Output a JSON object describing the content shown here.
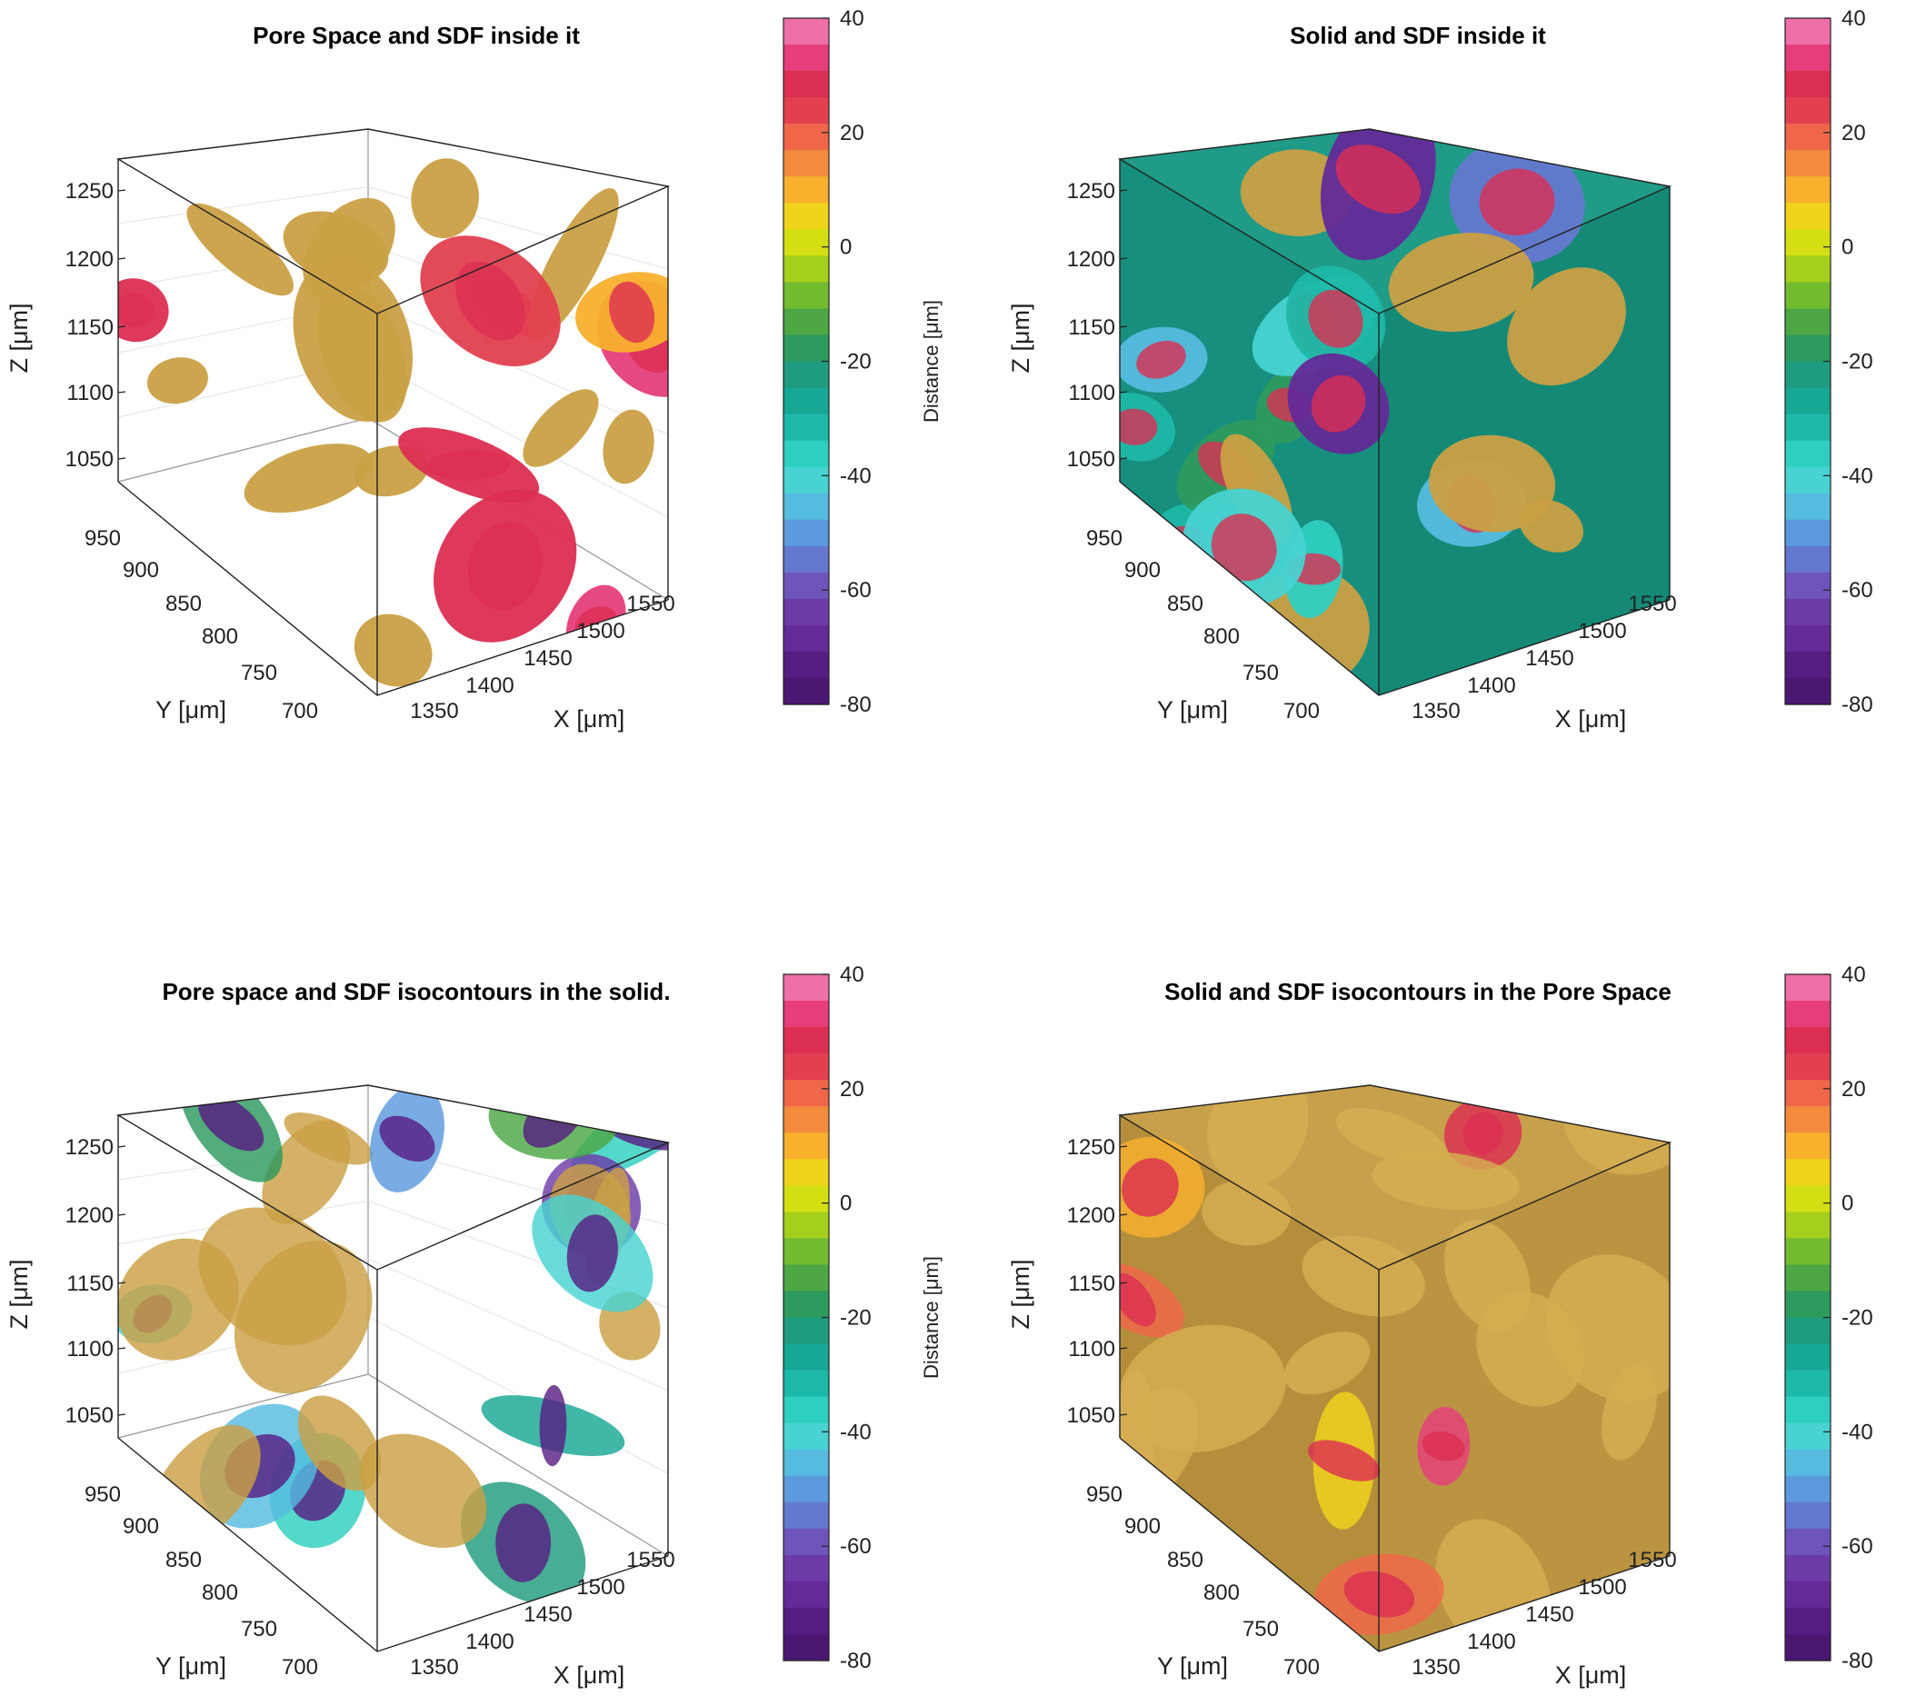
{
  "figure": {
    "colormap": {
      "label_prefix": "Distance [",
      "label_unit": "μm",
      "label_suffix": "]",
      "ticks": [
        "40",
        "20",
        "0",
        "-20",
        "-40",
        "-60",
        "-80"
      ],
      "range": [
        -80,
        40
      ],
      "colors": [
        "#4c1773",
        "#561c82",
        "#632a98",
        "#6d3ba8",
        "#6d55bb",
        "#6478cf",
        "#5c9ade",
        "#55bce0",
        "#48d3d2",
        "#2ecfc0",
        "#1db8a8",
        "#17a795",
        "#1f9b7e",
        "#2d9a5e",
        "#4ca744",
        "#73bb2f",
        "#a4cf1c",
        "#d3df12",
        "#f1d31b",
        "#f8b02d",
        "#f48b3c",
        "#ef6649",
        "#e2404f",
        "#dc2e52",
        "#e53e7b",
        "#ef6fa8"
      ]
    },
    "solid_color": "#caa044",
    "panels": [
      {
        "id": "pore-sdf",
        "title": "Pore Space and SDF inside it",
        "mode": "pore",
        "z_label": "Z [μm]",
        "y_label": "Y [μm]",
        "x_label": "X [μm]",
        "z_ticks": [
          "1250",
          "1200",
          "1150",
          "1100",
          "1050"
        ],
        "y_ticks": [
          "950",
          "900",
          "850",
          "800",
          "750",
          "700"
        ],
        "x_ticks": [
          "1350",
          "1400",
          "1450",
          "1500",
          "1550"
        ]
      },
      {
        "id": "solid-sdf",
        "title": "Solid and SDF inside it",
        "mode": "solid",
        "z_label": "Z [μm]",
        "y_label": "Y [μm]",
        "x_label": "X [μm]",
        "z_ticks": [
          "1250",
          "1200",
          "1150",
          "1100",
          "1050"
        ],
        "y_ticks": [
          "950",
          "900",
          "850",
          "800",
          "750",
          "700"
        ],
        "x_ticks": [
          "1350",
          "1400",
          "1450",
          "1500",
          "1550"
        ]
      },
      {
        "id": "pore-isocontours",
        "title": "Pore space and SDF isocontours in the solid.",
        "mode": "pore-iso",
        "z_label": "Z [μm]",
        "y_label": "Y [μm]",
        "x_label": "X [μm]",
        "z_ticks": [
          "1250",
          "1200",
          "1150",
          "1100",
          "1050"
        ],
        "y_ticks": [
          "950",
          "900",
          "850",
          "800",
          "750",
          "700"
        ],
        "x_ticks": [
          "1350",
          "1400",
          "1450",
          "1500",
          "1550"
        ]
      },
      {
        "id": "solid-isocontours",
        "title": "Solid and SDF isocontours in the Pore Space",
        "mode": "solid-iso",
        "z_label": "Z [μm]",
        "y_label": "Y [μm]",
        "x_label": "X [μm]",
        "z_ticks": [
          "1250",
          "1200",
          "1150",
          "1100",
          "1050"
        ],
        "y_ticks": [
          "950",
          "900",
          "850",
          "800",
          "750",
          "700"
        ],
        "x_ticks": [
          "1350",
          "1400",
          "1450",
          "1500",
          "1550"
        ]
      }
    ]
  },
  "chart_data": [
    {
      "type": "3d-volume",
      "title": "Pore Space and SDF inside it",
      "zlabel": "Z [μm]",
      "ylabel": "Y [μm]",
      "xlabel": "X [μm]",
      "x_ticks": [
        1350,
        1400,
        1450,
        1500,
        1550
      ],
      "y_ticks": [
        700,
        750,
        800,
        850,
        900,
        950
      ],
      "z_ticks": [
        1050,
        1100,
        1150,
        1200,
        1250
      ],
      "colorbar": {
        "label": "Distance [μm]",
        "range": [
          -80,
          40
        ],
        "ticks": [
          40,
          20,
          0,
          -20,
          -40,
          -60,
          -80
        ]
      }
    },
    {
      "type": "3d-volume",
      "title": "Solid and SDF inside it",
      "zlabel": "Z [μm]",
      "ylabel": "Y [μm]",
      "xlabel": "X [μm]",
      "x_ticks": [
        1350,
        1400,
        1450,
        1500,
        1550
      ],
      "y_ticks": [
        700,
        750,
        800,
        850,
        900,
        950
      ],
      "z_ticks": [
        1050,
        1100,
        1150,
        1200,
        1250
      ],
      "colorbar": {
        "label": "Distance [μm]",
        "range": [
          -80,
          40
        ],
        "ticks": [
          40,
          20,
          0,
          -20,
          -40,
          -60,
          -80
        ]
      }
    },
    {
      "type": "3d-volume",
      "title": "Pore space and SDF isocontours in the solid.",
      "zlabel": "Z [μm]",
      "ylabel": "Y [μm]",
      "xlabel": "X [μm]",
      "x_ticks": [
        1350,
        1400,
        1450,
        1500,
        1550
      ],
      "y_ticks": [
        700,
        750,
        800,
        850,
        900,
        950
      ],
      "z_ticks": [
        1050,
        1100,
        1150,
        1200,
        1250
      ],
      "colorbar": {
        "label": "Distance [μm]",
        "range": [
          -80,
          40
        ],
        "ticks": [
          40,
          20,
          0,
          -20,
          -40,
          -60,
          -80
        ]
      }
    },
    {
      "type": "3d-volume",
      "title": "Solid and SDF isocontours in the Pore Space",
      "zlabel": "Z [μm]",
      "ylabel": "Y [μm]",
      "xlabel": "X [μm]",
      "x_ticks": [
        1350,
        1400,
        1450,
        1500,
        1550
      ],
      "y_ticks": [
        700,
        750,
        800,
        850,
        900,
        950
      ],
      "z_ticks": [
        1050,
        1100,
        1150,
        1200,
        1250
      ],
      "colorbar": {
        "label": "Distance [μm]",
        "range": [
          -80,
          40
        ],
        "ticks": [
          40,
          20,
          0,
          -20,
          -40,
          -60,
          -80
        ]
      }
    }
  ]
}
